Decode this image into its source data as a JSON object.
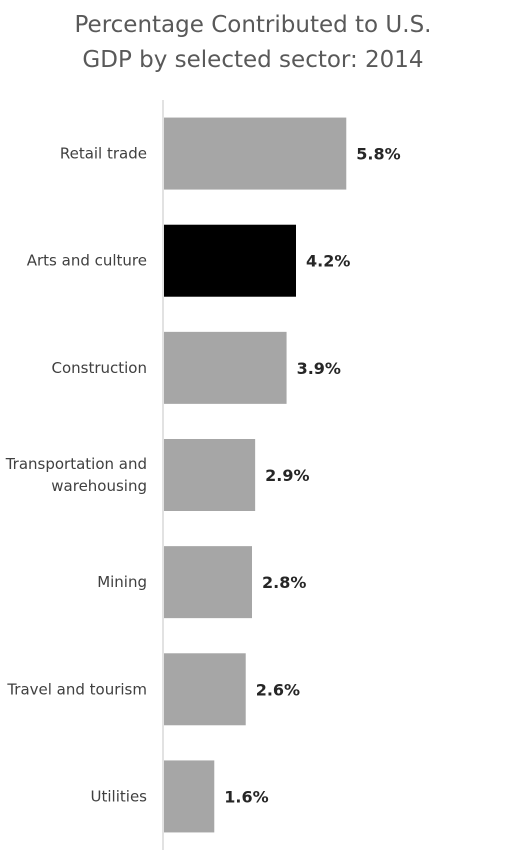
{
  "chart_data": {
    "type": "bar",
    "orientation": "horizontal",
    "title_lines": [
      "Percentage Contributed to U.S.",
      "GDP  by selected sector: 2014"
    ],
    "xlabel": "",
    "ylabel": "",
    "grid": false,
    "legend": "none",
    "value_suffix": "%",
    "xlim": [
      0,
      10.5
    ],
    "categories": [
      [
        "Retail trade"
      ],
      [
        "Arts and culture"
      ],
      [
        "Construction"
      ],
      [
        "Transportation and",
        "warehousing"
      ],
      [
        "Mining"
      ],
      [
        "Travel and tourism"
      ],
      [
        "Utilities"
      ]
    ],
    "values": [
      5.8,
      4.2,
      3.9,
      2.9,
      2.8,
      2.6,
      1.6
    ],
    "data_labels": [
      "5.8%",
      "4.2%",
      "3.9%",
      "2.9%",
      "2.8%",
      "2.6%",
      "1.6%"
    ],
    "bar_colors": [
      "#a6a6a6",
      "#000000",
      "#a6a6a6",
      "#a6a6a6",
      "#a6a6a6",
      "#a6a6a6",
      "#a6a6a6"
    ],
    "axis_color": "#d9d9d9"
  }
}
